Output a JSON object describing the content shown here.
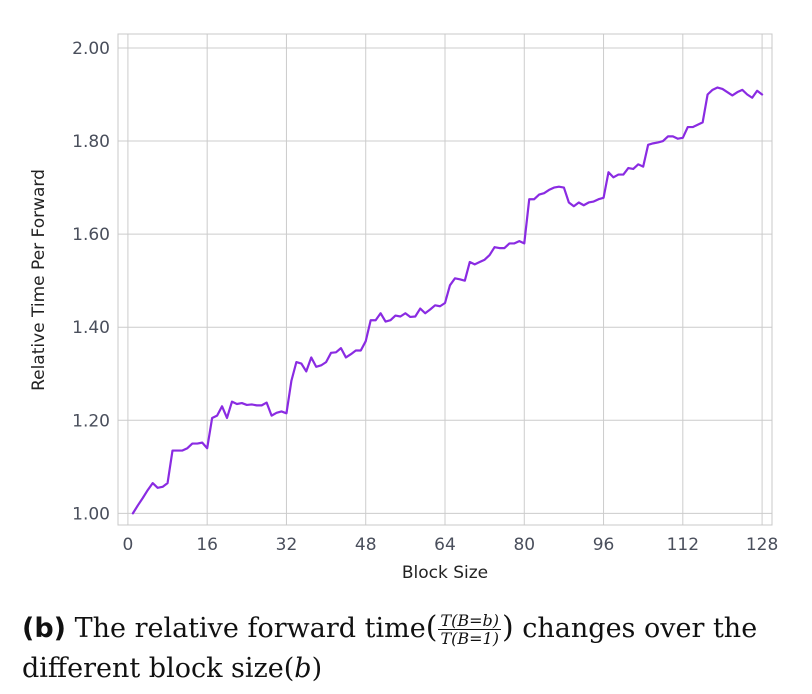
{
  "chart_data": {
    "type": "line",
    "title": "",
    "xlabel": "Block Size",
    "ylabel": "Relative Time Per Forward",
    "xlim": [
      -2,
      130
    ],
    "ylim": [
      0.975,
      2.03
    ],
    "x_ticks": [
      0,
      16,
      32,
      48,
      64,
      80,
      96,
      112,
      128
    ],
    "x_tick_labels": [
      "0",
      "16",
      "32",
      "48",
      "64",
      "80",
      "96",
      "112",
      "128"
    ],
    "y_ticks": [
      1.0,
      1.2,
      1.4,
      1.6,
      1.8,
      2.0
    ],
    "y_tick_labels": [
      "1.00",
      "1.20",
      "1.40",
      "1.60",
      "1.80",
      "2.00"
    ],
    "grid": true,
    "line_color": "#8a2be2",
    "series": [
      {
        "x": [
          1,
          2,
          3,
          4,
          5,
          6,
          7,
          8,
          9,
          10,
          11,
          12,
          13,
          14,
          15,
          16,
          17,
          18,
          19,
          20,
          21,
          22,
          23,
          24,
          25,
          26,
          27,
          28,
          29,
          30,
          31,
          32,
          33,
          34,
          35,
          36,
          37,
          38,
          39,
          40,
          41,
          42,
          43,
          44,
          45,
          46,
          47,
          48,
          49,
          50,
          51,
          52,
          53,
          54,
          55,
          56,
          57,
          58,
          59,
          60,
          61,
          62,
          63,
          64,
          65,
          66,
          67,
          68,
          69,
          70,
          71,
          72,
          73,
          74,
          75,
          76,
          77,
          78,
          79,
          80,
          81,
          82,
          83,
          84,
          85,
          86,
          87,
          88,
          89,
          90,
          91,
          92,
          93,
          94,
          95,
          96,
          97,
          98,
          99,
          100,
          101,
          102,
          103,
          104,
          105,
          106,
          107,
          108,
          109,
          110,
          111,
          112,
          113,
          114,
          115,
          116,
          117,
          118,
          119,
          120,
          121,
          122,
          123,
          124,
          125,
          126,
          127,
          128
        ],
        "values": [
          1.0,
          1.017,
          1.033,
          1.05,
          1.065,
          1.055,
          1.057,
          1.065,
          1.135,
          1.135,
          1.135,
          1.14,
          1.15,
          1.15,
          1.152,
          1.14,
          1.205,
          1.21,
          1.23,
          1.205,
          1.24,
          1.235,
          1.237,
          1.233,
          1.234,
          1.232,
          1.232,
          1.238,
          1.21,
          1.216,
          1.219,
          1.215,
          1.285,
          1.325,
          1.322,
          1.305,
          1.335,
          1.315,
          1.318,
          1.325,
          1.345,
          1.346,
          1.355,
          1.335,
          1.342,
          1.35,
          1.35,
          1.37,
          1.415,
          1.415,
          1.43,
          1.412,
          1.415,
          1.425,
          1.423,
          1.43,
          1.422,
          1.423,
          1.44,
          1.43,
          1.438,
          1.447,
          1.445,
          1.452,
          1.49,
          1.505,
          1.503,
          1.5,
          1.54,
          1.535,
          1.54,
          1.545,
          1.555,
          1.572,
          1.57,
          1.57,
          1.58,
          1.58,
          1.585,
          1.58,
          1.675,
          1.675,
          1.685,
          1.688,
          1.695,
          1.7,
          1.702,
          1.7,
          1.668,
          1.66,
          1.668,
          1.662,
          1.668,
          1.67,
          1.675,
          1.678,
          1.733,
          1.722,
          1.728,
          1.728,
          1.742,
          1.74,
          1.75,
          1.745,
          1.792,
          1.795,
          1.797,
          1.8,
          1.81,
          1.81,
          1.805,
          1.807,
          1.83,
          1.83,
          1.835,
          1.84,
          1.9,
          1.91,
          1.915,
          1.912,
          1.905,
          1.898,
          1.905,
          1.91,
          1.9,
          1.893,
          1.908,
          1.9
        ]
      }
    ]
  },
  "caption": {
    "tag": "(b)",
    "text_before": "The relative forward time",
    "frac_num": "T(B=b)",
    "frac_den": "T(B=1)",
    "text_after": " changes over the",
    "line2_text": "different block size",
    "line2_var": "b"
  }
}
